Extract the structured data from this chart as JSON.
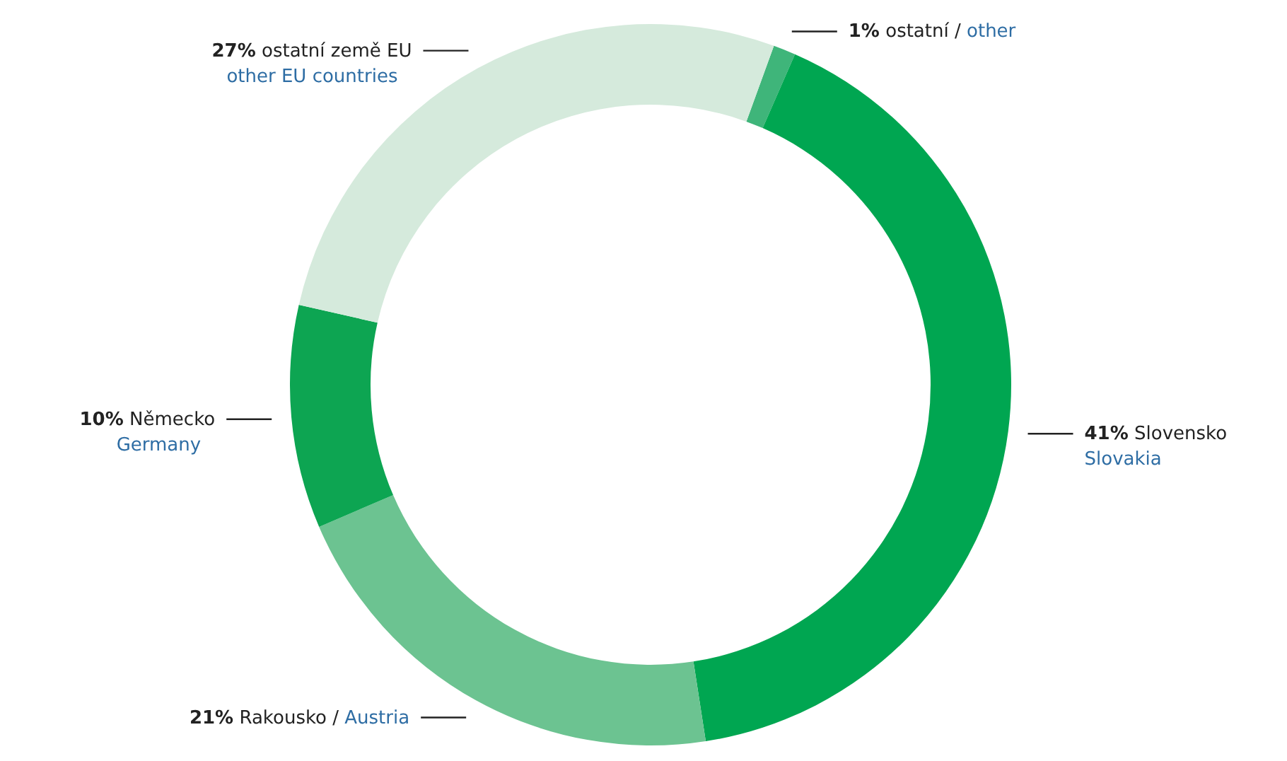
{
  "chart_data": {
    "type": "donut",
    "categories": [
      "ostatní / other",
      "Slovensko\nSlovakia",
      "Rakousko / Austria",
      "Německo\nGermany",
      "ostatní země EU\nother EU countries"
    ],
    "values": [
      1,
      41,
      21,
      10,
      27
    ],
    "value_labels": [
      "1%",
      "41%",
      "21%",
      "10%",
      "27%"
    ],
    "colors": [
      "#3fb57a",
      "#00a651",
      "#6cc391",
      "#0da552",
      "#d5eadc"
    ]
  }
}
